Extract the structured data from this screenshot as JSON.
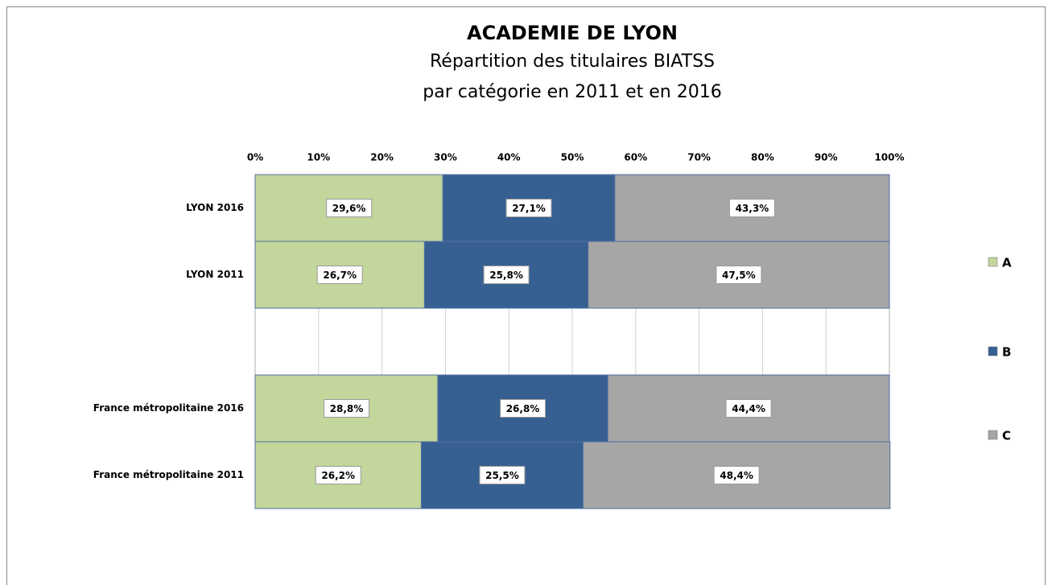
{
  "chart_data": {
    "type": "stacked-bar-horizontal",
    "title": "ACADEMIE DE LYON",
    "subtitle": [
      "Répartition des titulaires BIATSS",
      "par catégorie en 2011 et en 2016"
    ],
    "categories": [
      "LYON 2016",
      "LYON 2011",
      null,
      "France métropolitaine 2016",
      "France métropolitaine 2011"
    ],
    "series": [
      {
        "name": "A",
        "color": "#c3d69b",
        "values": [
          29.6,
          26.7,
          null,
          28.8,
          26.2
        ],
        "value_labels": [
          "29,6%",
          "26,7%",
          null,
          "28,8%",
          "26,2%"
        ]
      },
      {
        "name": "B",
        "color": "#376092",
        "values": [
          27.1,
          25.8,
          null,
          26.8,
          25.5
        ],
        "value_labels": [
          "27,1%",
          "25,8%",
          null,
          "26,8%",
          "25,5%"
        ]
      },
      {
        "name": "C",
        "color": "#a6a6a6",
        "values": [
          43.3,
          47.5,
          null,
          44.4,
          48.4
        ],
        "value_labels": [
          "43,3%",
          "47,5%",
          null,
          "44,4%",
          "48,4%"
        ]
      }
    ],
    "xlim": [
      0,
      100
    ],
    "xticks": [
      {
        "value": 0,
        "label": "0%"
      },
      {
        "value": 10,
        "label": "10%"
      },
      {
        "value": 20,
        "label": "20%"
      },
      {
        "value": 30,
        "label": "30%"
      },
      {
        "value": 40,
        "label": "40%"
      },
      {
        "value": 50,
        "label": "50%"
      },
      {
        "value": 60,
        "label": "60%"
      },
      {
        "value": 70,
        "label": "70%"
      },
      {
        "value": 80,
        "label": "80%"
      },
      {
        "value": 90,
        "label": "90%"
      },
      {
        "value": 100,
        "label": "100%"
      }
    ],
    "grid": true,
    "legend": "right"
  }
}
